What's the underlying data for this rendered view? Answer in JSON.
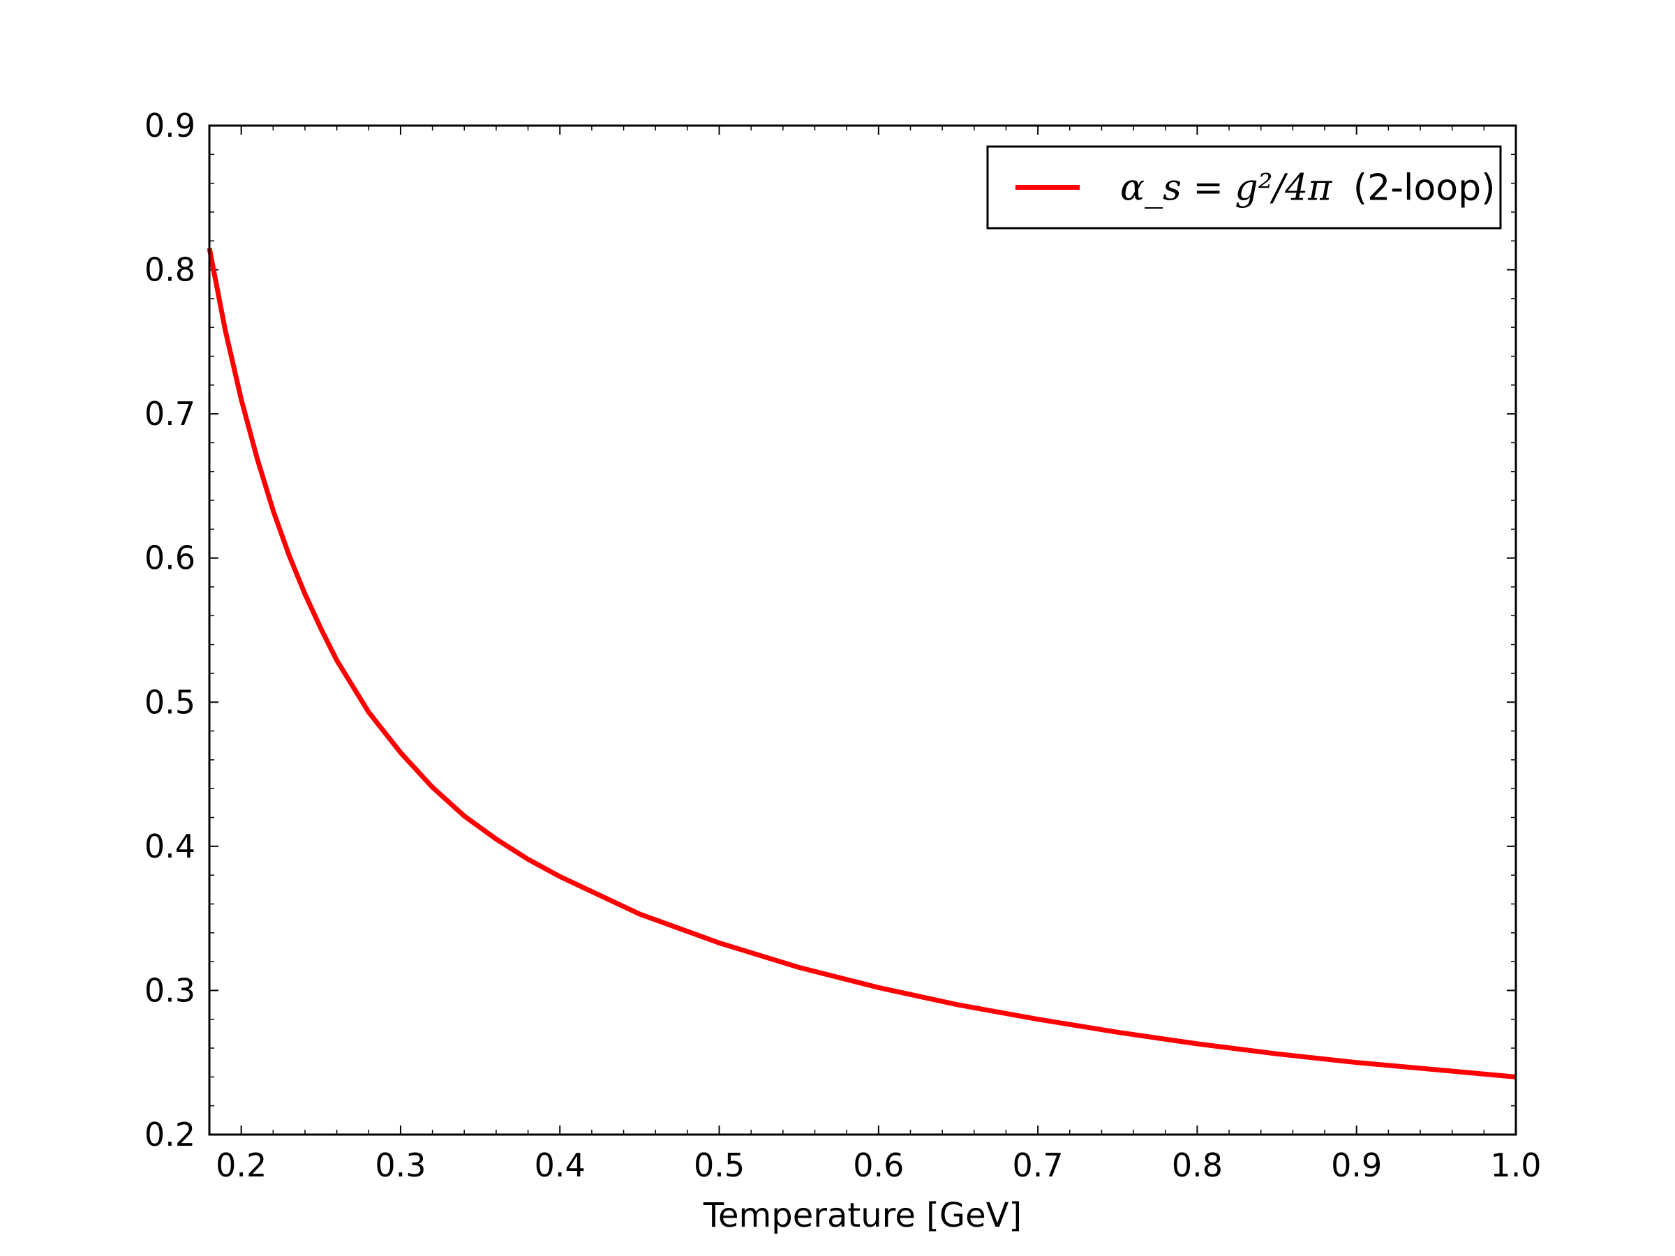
{
  "chart_data": {
    "type": "line",
    "title": "",
    "xlabel": "Temperature [GeV]",
    "ylabel": "",
    "xlim": [
      0.18,
      1.0
    ],
    "ylim": [
      0.2,
      0.9
    ],
    "x_ticks": [
      0.2,
      0.3,
      0.4,
      0.5,
      0.6,
      0.7,
      0.8,
      0.9,
      1.0
    ],
    "x_tick_labels": [
      "0.2",
      "0.3",
      "0.4",
      "0.5",
      "0.6",
      "0.7",
      "0.8",
      "0.9",
      "1.0"
    ],
    "y_ticks": [
      0.2,
      0.3,
      0.4,
      0.5,
      0.6,
      0.7,
      0.8,
      0.9
    ],
    "y_tick_labels": [
      "0.2",
      "0.3",
      "0.4",
      "0.5",
      "0.6",
      "0.7",
      "0.8",
      "0.9"
    ],
    "grid": false,
    "legend": {
      "position": "upper-right",
      "math_label": "α_s = g²/4π",
      "text_label": "(2-loop)"
    },
    "series": [
      {
        "name": "α_s = g²/4π (2-loop)",
        "color": "#ff0000",
        "x": [
          0.18,
          0.19,
          0.2,
          0.21,
          0.22,
          0.23,
          0.24,
          0.25,
          0.26,
          0.28,
          0.3,
          0.32,
          0.34,
          0.36,
          0.38,
          0.4,
          0.45,
          0.5,
          0.55,
          0.6,
          0.65,
          0.7,
          0.75,
          0.8,
          0.85,
          0.9,
          0.95,
          1.0
        ],
        "y": [
          0.815,
          0.758,
          0.71,
          0.669,
          0.633,
          0.602,
          0.575,
          0.551,
          0.529,
          0.493,
          0.465,
          0.441,
          0.421,
          0.405,
          0.391,
          0.379,
          0.353,
          0.333,
          0.316,
          0.302,
          0.29,
          0.28,
          0.271,
          0.263,
          0.256,
          0.25,
          0.245,
          0.24
        ]
      }
    ]
  }
}
